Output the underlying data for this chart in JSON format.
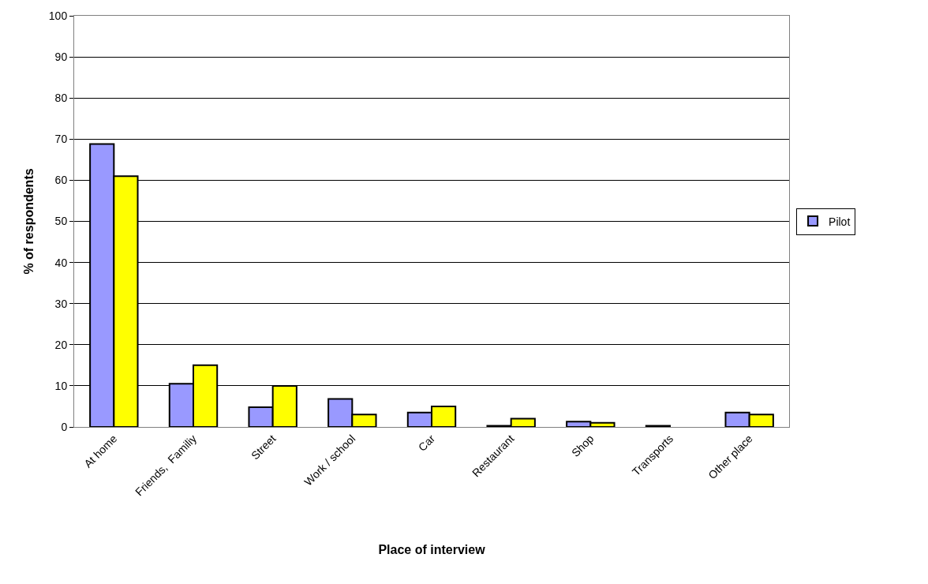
{
  "chart_data": {
    "type": "bar",
    "xlabel": "Place of interview",
    "ylabel": "% of respondents",
    "categories": [
      "At home",
      "Friends,  Familiy",
      "Street",
      "Work / school",
      "Car",
      "Restaurant",
      "Shop",
      "Transports",
      "Other place"
    ],
    "series": [
      {
        "name": "Pilot",
        "color": "#9999ff",
        "values": [
          68.8,
          10.5,
          4.8,
          6.8,
          3.5,
          0.3,
          1.3,
          0.3,
          3.5
        ]
      },
      {
        "color": "#ffff00",
        "values": [
          61,
          15,
          10,
          3,
          5,
          2,
          1,
          null,
          3
        ]
      }
    ],
    "ylim": [
      0,
      100
    ],
    "yticks": [
      0,
      10,
      20,
      30,
      40,
      50,
      60,
      70,
      80,
      90,
      100
    ],
    "grid": "y",
    "legend": "right"
  }
}
